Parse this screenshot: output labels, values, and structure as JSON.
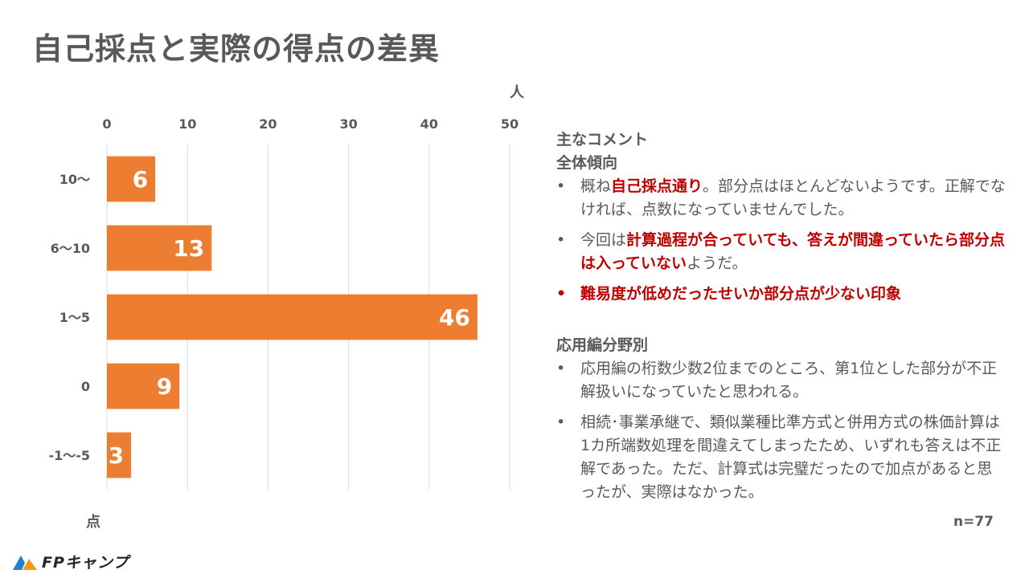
{
  "title": "自己採点と実際の得点の差異",
  "chart_data": {
    "type": "bar",
    "orientation": "horizontal",
    "categories": [
      "10～",
      "6～10",
      "1～5",
      "0",
      "-1～-5"
    ],
    "values": [
      6,
      13,
      46,
      9,
      3
    ],
    "xlabel": "人",
    "ylabel": "点",
    "xlim": [
      0,
      50
    ],
    "xticks": [
      0,
      10,
      20,
      30,
      40,
      50
    ],
    "xaxis_position": "top",
    "grid": true,
    "bar_color": "#ED7D31",
    "data_labels": true
  },
  "comments": {
    "heading": "主なコメント",
    "section1_title": "全体傾向",
    "s1_b1_pre": "概ね",
    "s1_b1_emph": "自己採点通り",
    "s1_b1_post": "。部分点はほとんどないようです。正解でなければ、点数になっていませんでした。",
    "s1_b2_pre": "今回は",
    "s1_b2_emph": "計算過程が合っていても、答えが間違っていたら部分点は入っていない",
    "s1_b2_post": "ようだ。",
    "s1_b3": "難易度が低めだったせいか部分点が少ない印象",
    "section2_title": "応用編分野別",
    "s2_b1": "応用編の桁数少数2位までのところ、第1位とした部分が不正解扱いになっていたと思われる。",
    "s2_b2": "相続･事業承継で、類似業種比準方式と併用方式の株価計算は1カ所端数処理を間違えてしまったため、いずれも答えは不正解であった。ただ、計算式は完璧だったので加点があると思ったが、実際はなかった。",
    "bullet": "•"
  },
  "n_label": "n=77",
  "logo": {
    "text": "FPキャンプ",
    "icon": "fp-camp-logo-icon",
    "colors": [
      "#1f7fd1",
      "#f39c12"
    ]
  },
  "colors": {
    "text": "#595959",
    "accent_red": "#c00000",
    "bar": "#ED7D31",
    "grid": "#d9d9d9"
  }
}
